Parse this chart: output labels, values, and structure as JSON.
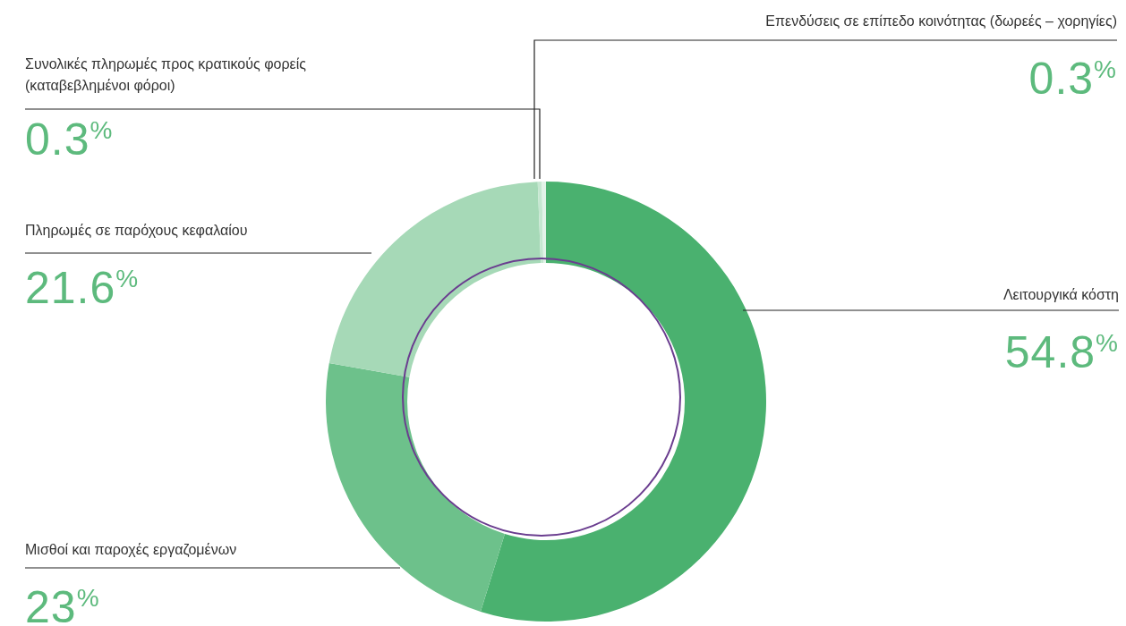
{
  "chart_data": {
    "type": "donut",
    "categories": [
      "Λειτουργικά κόστη",
      "Μισθοί και παροχές εργαζομένων",
      "Πληρωμές σε παρόχους κεφαλαίου",
      "Επενδύσεις σε επίπεδο κοινότητας (δωρεές – χορηγίες)",
      "Συνολικές πληρωμές προς κρατικούς φορείς (καταβεβλημένοι φόροι)"
    ],
    "values": [
      54.8,
      23,
      21.6,
      0.3,
      0.3
    ],
    "colors": [
      "#4ab16f",
      "#6dc18b",
      "#a6d9b7",
      "#c6e7d1",
      "#e2f3e8"
    ],
    "value_labels": [
      "54.8$^{%}$",
      "23$^{%}$",
      "21.6$^{%}$",
      "0.3$^{%}$",
      "0.3$^{%}$"
    ]
  }
}
